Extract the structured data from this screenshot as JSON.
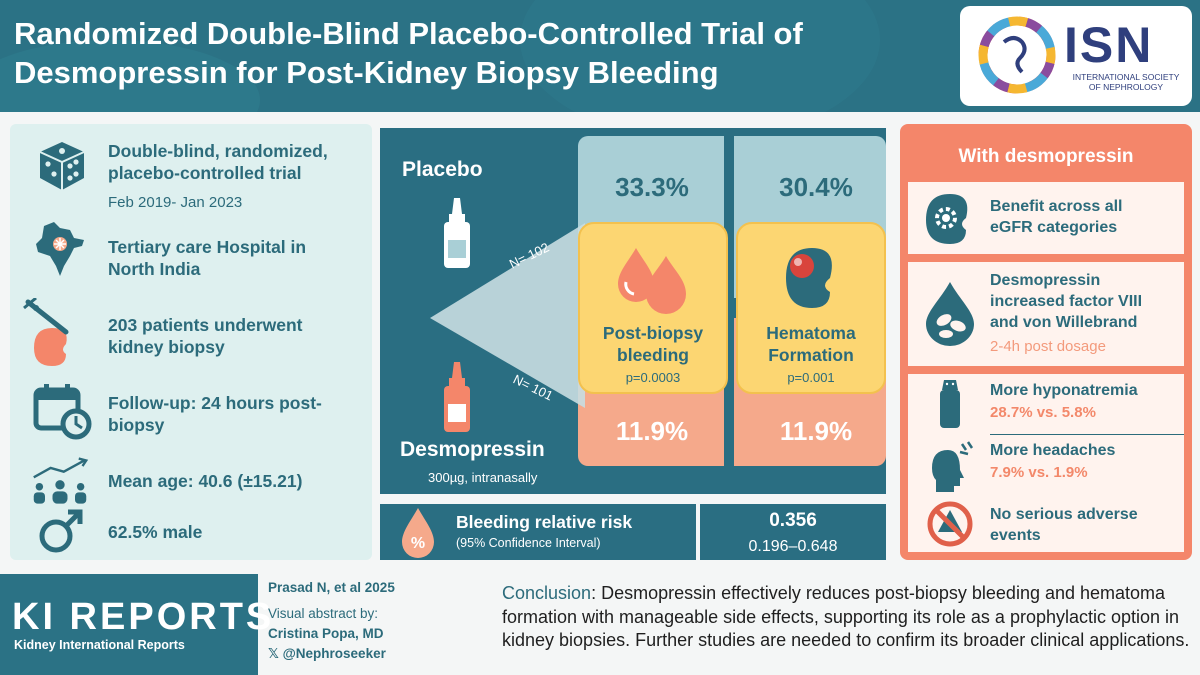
{
  "header": {
    "title_line1": "Randomized Double-Blind Placebo-Controlled Trial of",
    "title_line2": "Desmopressin for Post-Kidney Biopsy Bleeding",
    "isn_abbr": "ISN",
    "isn_full_line1": "INTERNATIONAL SOCIETY",
    "isn_full_line2": "OF NEPHROLOGY"
  },
  "study": {
    "design_line1": "Double-blind, randomized,",
    "design_line2": "placebo-controlled trial",
    "period": "Feb 2019- Jan 2023",
    "site_line1": "Tertiary care Hospital in",
    "site_line2": "North India",
    "patients_line1": "203 patients underwent",
    "patients_line2": "kidney biopsy",
    "followup_line1": "Follow-up: 24 hours post-",
    "followup_line2": "biopsy",
    "age": "Mean age: 40.6 (±15.21)",
    "male": "62.5% male",
    "icons": [
      "dice-icon",
      "india-map-icon",
      "biopsy-needle-kidney-icon",
      "calendar-clock-icon",
      "people-trend-icon",
      "male-symbol-icon"
    ]
  },
  "arms": {
    "placebo_label": "Placebo",
    "placebo_n": "N= 102",
    "desmo_label": "Desmopressin",
    "desmo_n": "N= 101",
    "dose": "300µg, intranasally"
  },
  "outcomes": [
    {
      "name_line1": "Post-biopsy",
      "name_line2": "bleeding",
      "p": "p=0.0003",
      "placebo": "33.3%",
      "desmo": "11.9%"
    },
    {
      "name_line1": "Hematoma",
      "name_line2": "Formation",
      "p": "p=0.001",
      "placebo": "30.4%",
      "desmo": "11.9%"
    }
  ],
  "relative_risk": {
    "title": "Bleeding relative risk",
    "subtitle": "(95% Confidence Interval)",
    "value": "0.356",
    "ci": "0.196–0.648"
  },
  "desmo_effects": {
    "title": "With desmopressin",
    "items": [
      {
        "line1": "Benefit across all",
        "line2": "eGFR categories",
        "icon": "kidney-gear-icon"
      },
      {
        "line1": "Desmopressin",
        "line2": "increased factor VIII",
        "line3": "and von Willebrand",
        "sub": "2-4h post dosage",
        "icon": "blood-drop-cells-icon"
      },
      {
        "line1": "More hyponatremia",
        "sub": "28.7% vs. 5.8%",
        "icon": "salt-shaker-icon"
      },
      {
        "line1": "More headaches",
        "sub": "7.9% vs. 1.9%",
        "icon": "headache-icon"
      },
      {
        "line1": "No serious adverse",
        "line2": "events",
        "icon": "no-warning-icon"
      }
    ]
  },
  "footer": {
    "journal": "KI REPORTS",
    "journal_sub": "Kidney International Reports",
    "citation": "Prasad N, et al 2025",
    "visual_by": "Visual abstract by:",
    "author": "Cristina Popa, MD",
    "handle": "𝕏 @Nephroseeker",
    "conclusion_label": "Conclusion",
    "conclusion_text": ": Desmopressin effectively reduces post-biopsy bleeding and hematoma formation with manageable side effects, supporting its role as a prophylactic option in kidney biopsies. Further studies are needed to confirm its broader clinical applications."
  },
  "colors": {
    "teal": "#2a6e82",
    "light_teal": "#a9cfd6",
    "salmon": "#f5a98b",
    "coral": "#f4866a",
    "yellow": "#fcd672"
  }
}
